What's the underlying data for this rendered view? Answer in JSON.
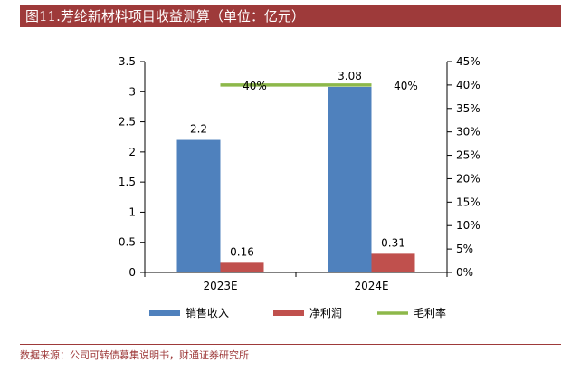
{
  "title": "图11.芳纶新材料项目收益测算（单位：亿元）",
  "source": "数据来源：公司可转债募集说明书，财通证券研究所",
  "colors": {
    "title_bg": "#9e3a3a",
    "revenue": "#4f81bd",
    "net_profit": "#c0504d",
    "gross_margin": "#8db84a"
  },
  "chart_data": {
    "type": "bar",
    "categories": [
      "2023E",
      "2024E"
    ],
    "series": [
      {
        "name": "销售收入",
        "type": "bar",
        "axis": "left",
        "values": [
          2.2,
          3.08
        ],
        "labels": [
          "2.2",
          "3.08"
        ]
      },
      {
        "name": "净利润",
        "type": "bar",
        "axis": "left",
        "values": [
          0.16,
          0.31
        ],
        "labels": [
          "0.16",
          "0.31"
        ]
      },
      {
        "name": "毛利率",
        "type": "line",
        "axis": "right",
        "values": [
          40,
          40
        ],
        "labels": [
          "40%",
          "40%"
        ]
      }
    ],
    "ylim_left": [
      0,
      3.5
    ],
    "yticks_left": [
      "0",
      "0.5",
      "1",
      "1.5",
      "2",
      "2.5",
      "3",
      "3.5"
    ],
    "ylim_right": [
      0,
      45
    ],
    "yticks_right": [
      "0%",
      "5%",
      "10%",
      "15%",
      "20%",
      "25%",
      "30%",
      "35%",
      "40%",
      "45%"
    ],
    "legend_position": "bottom",
    "grid": false
  }
}
